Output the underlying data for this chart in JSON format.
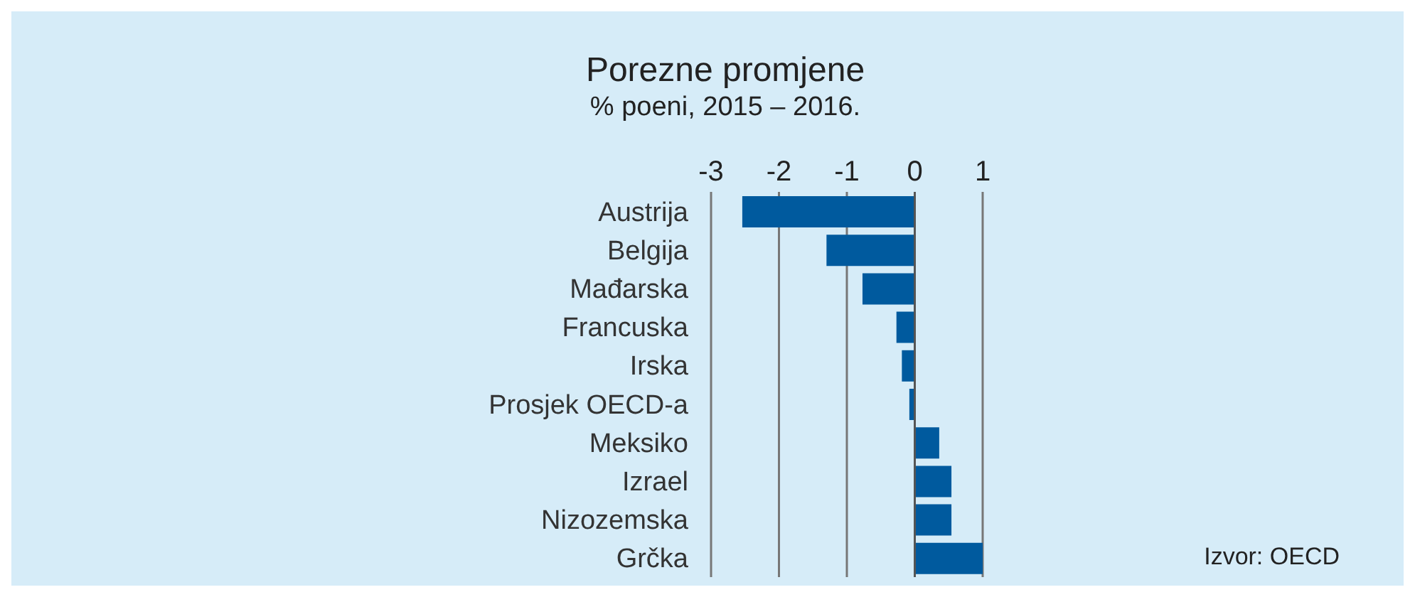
{
  "chart_data": {
    "type": "bar",
    "orientation": "horizontal",
    "title": "Porezne promjene",
    "subtitle": "% poeni, 2015 – 2016.",
    "categories": [
      "Austrija",
      "Belgija",
      "Mađarska",
      "Francuska",
      "Irska",
      "Prosjek OECD-a",
      "Meksiko",
      "Izrael",
      "Nizozemska",
      "Grčka"
    ],
    "values": [
      -2.54,
      -1.3,
      -0.77,
      -0.27,
      -0.19,
      -0.08,
      0.36,
      0.54,
      0.54,
      1.0
    ],
    "color": "#005a9e",
    "xlim": [
      -3,
      1
    ],
    "xticks": [
      -3,
      -2,
      -1,
      0,
      1
    ],
    "grid": "x",
    "legend": false,
    "annotations": [
      "Izvor: OECD"
    ]
  }
}
